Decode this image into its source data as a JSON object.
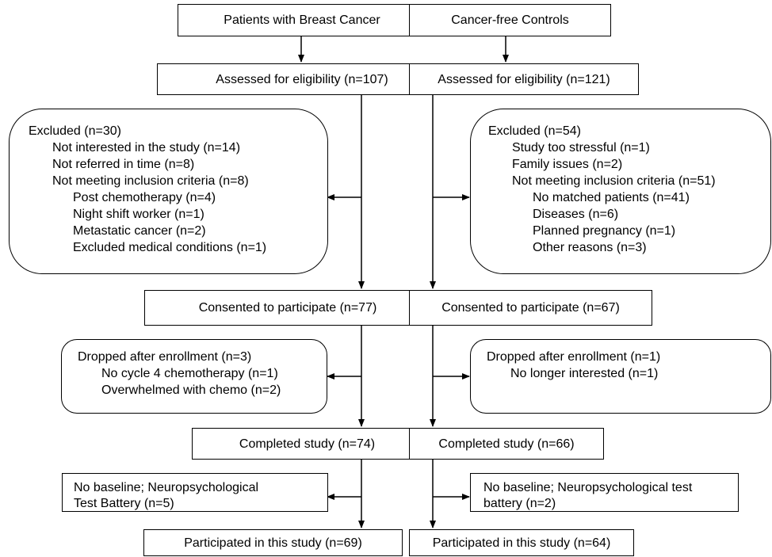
{
  "left": {
    "title": "Patients with Breast Cancer",
    "assessed": "Assessed for eligibility (n=107)",
    "excluded": {
      "header": "Excluded (n=30)",
      "items": [
        "Not interested in the study (n=14)",
        "Not referred in time (n=8)",
        "Not meeting inclusion criteria (n=8)"
      ],
      "subitems": [
        "Post chemotherapy (n=4)",
        "Night shift worker (n=1)",
        "Metastatic cancer (n=2)",
        "Excluded medical conditions (n=1)"
      ]
    },
    "consented": "Consented to participate (n=77)",
    "dropped": {
      "header": "Dropped after enrollment (n=3)",
      "items": [
        "No cycle 4 chemotherapy (n=1)",
        "Overwhelmed with chemo (n=2)"
      ]
    },
    "completed": "Completed study (n=74)",
    "nobaseline": [
      "No baseline; Neuropsychological",
      "Test Battery (n=5)"
    ],
    "participated": "Participated in this study (n=69)"
  },
  "right": {
    "title": "Cancer-free Controls",
    "assessed": "Assessed for eligibility (n=121)",
    "excluded": {
      "header": "Excluded (n=54)",
      "items": [
        "Study too stressful (n=1)",
        "Family issues (n=2)",
        "Not meeting inclusion criteria (n=51)"
      ],
      "subitems": [
        "No matched patients (n=41)",
        "Diseases (n=6)",
        "Planned pregnancy (n=1)",
        "Other reasons (n=3)"
      ]
    },
    "consented": "Consented to participate (n=67)",
    "dropped": {
      "header": "Dropped after enrollment (n=1)",
      "items": [
        "No longer interested (n=1)"
      ]
    },
    "completed": "Completed study (n=66)",
    "nobaseline": [
      "No baseline; Neuropsychological test",
      "battery (n=2)"
    ],
    "participated": "Participated in this study (n=64)"
  }
}
